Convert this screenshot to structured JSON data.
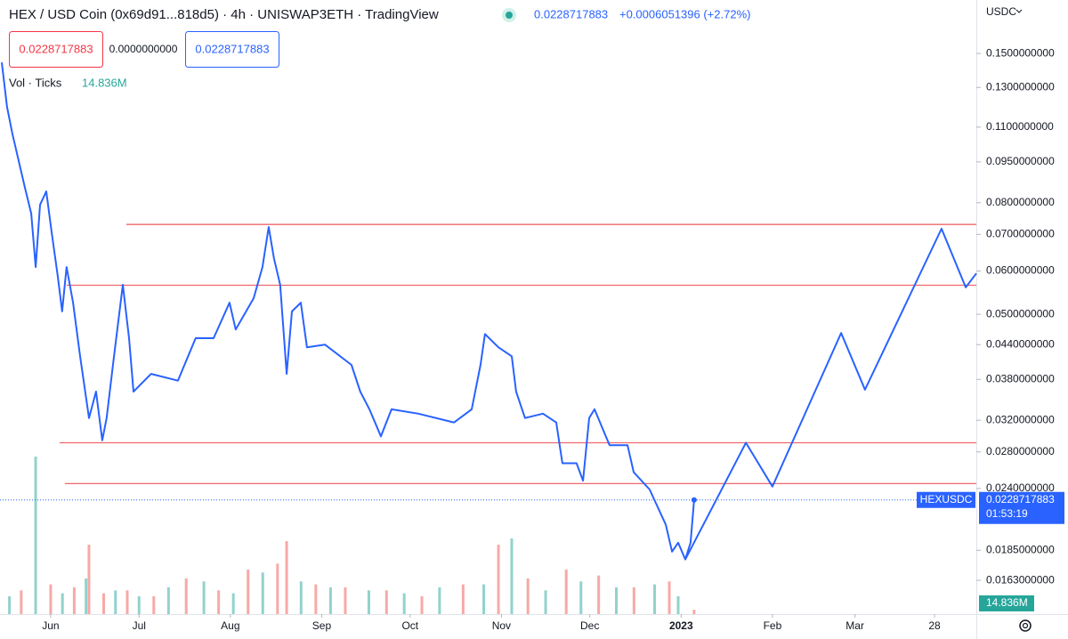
{
  "chart_data": {
    "type": "line",
    "title": "HEX / USD Coin (0x69d91...818d5) · 4h · UNISWAP3ETH · TradingView",
    "last_price": 0.0228717883,
    "change": "+0.0006051396 (+2.72%)",
    "zero_value": "0.0000000000",
    "volume_title": "Vol · Ticks",
    "volume_text": "14.836M",
    "currency": "USDC",
    "symbol": "HEXUSDC",
    "countdown": "01:53:19",
    "log_scale": true,
    "xlim": [
      -17.2,
      314.2
    ],
    "ylim": [
      0.01414,
      0.1879
    ],
    "xticks": [
      {
        "value": 0,
        "label": "Jun"
      },
      {
        "value": 30,
        "label": "Jul"
      },
      {
        "value": 61,
        "label": "Aug"
      },
      {
        "value": 92,
        "label": "Sep"
      },
      {
        "value": 122,
        "label": "Oct"
      },
      {
        "value": 153,
        "label": "Nov"
      },
      {
        "value": 183,
        "label": "Dec"
      },
      {
        "value": 214,
        "label": "2023"
      },
      {
        "value": 245,
        "label": "Feb"
      },
      {
        "value": 273,
        "label": "Mar"
      },
      {
        "value": 300,
        "label": "28"
      }
    ],
    "yticks": [
      {
        "value": 0.15,
        "label": "0.1500000000"
      },
      {
        "value": 0.13,
        "label": "0.1300000000"
      },
      {
        "value": 0.11,
        "label": "0.1100000000"
      },
      {
        "value": 0.095,
        "label": "0.0950000000"
      },
      {
        "value": 0.08,
        "label": "0.0800000000"
      },
      {
        "value": 0.07,
        "label": "0.0700000000"
      },
      {
        "value": 0.06,
        "label": "0.0600000000"
      },
      {
        "value": 0.05,
        "label": "0.0500000000"
      },
      {
        "value": 0.044,
        "label": "0.0440000000"
      },
      {
        "value": 0.038,
        "label": "0.0380000000"
      },
      {
        "value": 0.032,
        "label": "0.0320000000"
      },
      {
        "value": 0.028,
        "label": "0.0280000000"
      },
      {
        "value": 0.024,
        "label": "0.0240000000"
      },
      {
        "value": 0.0185,
        "label": "0.0185000000"
      },
      {
        "value": 0.0163,
        "label": "0.0163000000"
      }
    ],
    "series": [
      {
        "color": "#2962ff",
        "x": [
          -16.6,
          -14.8,
          -13.0,
          -8.8,
          -6.6,
          -5.1,
          -3.6,
          -1.5,
          0.3,
          2.4,
          3.9,
          5.4,
          7.6,
          10.0,
          13.0,
          15.4,
          17.5,
          19.0,
          21.5,
          24.5,
          26.6,
          28.1,
          34.1,
          43.2,
          49.2,
          55.3,
          60.7,
          62.8,
          68.9,
          71.9,
          74.0,
          75.8,
          77.9,
          80.1,
          81.9,
          84.9,
          87.0,
          93.1,
          102.1,
          105.1,
          108.2,
          112.1,
          115.7,
          124.8,
          136.9,
          142.9,
          145.9,
          147.4,
          152.0,
          156.5,
          158.0,
          161.0,
          167.1,
          171.6,
          173.7,
          178.5,
          180.7,
          182.8,
          184.6,
          189.7,
          195.8,
          197.9,
          203.3,
          208.8,
          210.9,
          213.0,
          215.4,
          217.2,
          218.4
        ],
        "values": [
          0.1445,
          0.1198,
          0.107,
          0.0855,
          0.0764,
          0.061,
          0.0793,
          0.0839,
          0.0709,
          0.0587,
          0.0506,
          0.061,
          0.0525,
          0.0419,
          0.0323,
          0.0361,
          0.0294,
          0.0323,
          0.0419,
          0.0566,
          0.0452,
          0.0361,
          0.0389,
          0.0378,
          0.0452,
          0.0452,
          0.0525,
          0.0469,
          0.0535,
          0.061,
          0.0722,
          0.0633,
          0.0566,
          0.0389,
          0.0506,
          0.0525,
          0.0435,
          0.044,
          0.0404,
          0.0361,
          0.0335,
          0.0299,
          0.0335,
          0.0329,
          0.0317,
          0.0335,
          0.0404,
          0.046,
          0.0435,
          0.0419,
          0.0361,
          0.0323,
          0.0329,
          0.0317,
          0.0267,
          0.0267,
          0.0248,
          0.0323,
          0.0335,
          0.0288,
          0.0288,
          0.0257,
          0.0239,
          0.0206,
          0.0184,
          0.0191,
          0.0178,
          0.0191,
          0.0228717883
        ]
      },
      {
        "color": "#2962ff",
        "x": [
          215.4,
          236.0,
          245.0,
          268.3,
          276.4,
          302.4,
          310.6,
          314.2
        ],
        "values": [
          0.0178,
          0.0291,
          0.0242,
          0.0462,
          0.0364,
          0.0717,
          0.056,
          0.0594
        ]
      }
    ],
    "hlines": {
      "color": "#f0676b",
      "levels": [
        {
          "value": 0.073,
          "from": 25.7
        },
        {
          "value": 0.0565,
          "from": 5.4
        },
        {
          "value": 0.0291,
          "from": 3.0
        },
        {
          "value": 0.0245,
          "from": 4.8
        }
      ]
    },
    "volume": {
      "ylim": [
        0,
        690
      ],
      "up": {
        "color": "rgba(38,166,154,0.5)",
        "x": [
          -14,
          -5.1,
          4,
          12,
          22,
          30,
          40,
          52,
          62,
          72,
          85,
          95,
          108,
          120,
          132,
          147,
          156.5,
          168,
          180,
          192,
          205,
          213
        ],
        "values": [
          60,
          531,
          70,
          120,
          80,
          60,
          90,
          110,
          70,
          140,
          110,
          90,
          80,
          70,
          90,
          100,
          255,
          80,
          110,
          90,
          100,
          60
        ]
      },
      "down": {
        "color": "rgba(239,83,80,0.5)",
        "x": [
          -10,
          0,
          8,
          13,
          18,
          26,
          35,
          46,
          57,
          67,
          77,
          80.1,
          90,
          100,
          114,
          126,
          140,
          152,
          162,
          175,
          186,
          198,
          210,
          218.4
        ],
        "values": [
          80,
          100,
          90,
          234,
          70,
          80,
          60,
          120,
          80,
          150,
          170,
          246,
          100,
          90,
          80,
          60,
          100,
          234,
          120,
          150,
          130,
          90,
          110,
          14.836
        ]
      }
    }
  }
}
